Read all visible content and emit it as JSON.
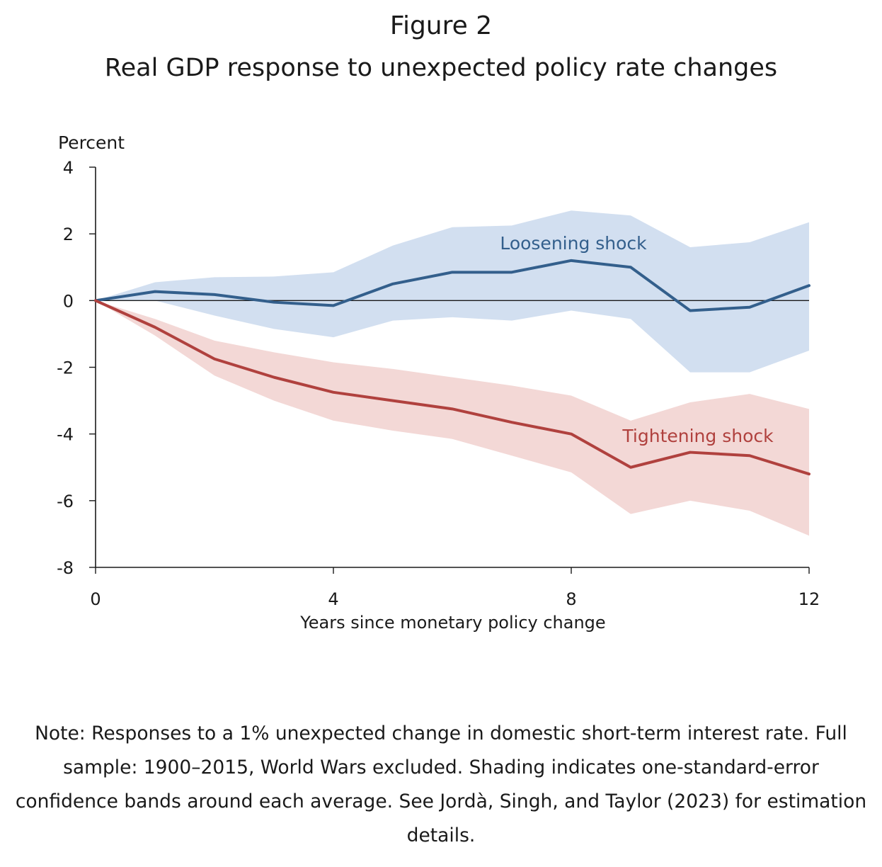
{
  "figure_label": "Figure 2",
  "title": "Real GDP response to unexpected policy rate changes",
  "note": "Note: Responses to a 1% unexpected change in domestic short-term interest rate. Full sample: 1900–2015, World Wars excluded. Shading indicates one-standard-error confidence bands around each average. See Jordà, Singh, and Taylor (2023) for estimation details.",
  "colors": {
    "loosening_line": "#335f8c",
    "loosening_band": "#d2dff0",
    "tightening_line": "#b0413e",
    "tightening_band": "#f3d8d6",
    "axis": "#1a1a1a"
  },
  "chart_data": {
    "type": "line",
    "ylabel": "Percent",
    "xlabel": "Years since monetary policy change",
    "xlim": [
      0,
      12
    ],
    "ylim": [
      -8,
      4
    ],
    "xticks": [
      0,
      4,
      8,
      12
    ],
    "yticks": [
      4,
      2,
      0,
      -2,
      -4,
      -6,
      -8
    ],
    "zero_line": true,
    "grid": false,
    "x": [
      0,
      1,
      2,
      3,
      4,
      5,
      6,
      7,
      8,
      9,
      10,
      11,
      12
    ],
    "series": [
      {
        "name": "Loosening shock",
        "values": [
          0,
          0.27,
          0.18,
          -0.05,
          -0.15,
          0.5,
          0.85,
          0.85,
          1.2,
          1.0,
          -0.3,
          -0.2,
          0.45
        ],
        "upper": [
          0,
          0.55,
          0.7,
          0.72,
          0.85,
          1.65,
          2.2,
          2.25,
          2.7,
          2.55,
          1.6,
          1.75,
          2.35
        ],
        "lower": [
          0,
          0.0,
          -0.45,
          -0.85,
          -1.1,
          -0.6,
          -0.5,
          -0.6,
          -0.3,
          -0.55,
          -2.15,
          -2.15,
          -1.5
        ]
      },
      {
        "name": "Tightening shock",
        "values": [
          0,
          -0.8,
          -1.75,
          -2.3,
          -2.75,
          -3.0,
          -3.25,
          -3.65,
          -4.0,
          -5.0,
          -4.55,
          -4.65,
          -5.2
        ],
        "upper": [
          0,
          -0.55,
          -1.2,
          -1.55,
          -1.85,
          -2.05,
          -2.3,
          -2.55,
          -2.85,
          -3.6,
          -3.05,
          -2.8,
          -3.25
        ],
        "lower": [
          0,
          -1.05,
          -2.25,
          -3.0,
          -3.6,
          -3.9,
          -4.15,
          -4.65,
          -5.15,
          -6.4,
          -6.0,
          -6.3,
          -7.05
        ]
      }
    ]
  }
}
